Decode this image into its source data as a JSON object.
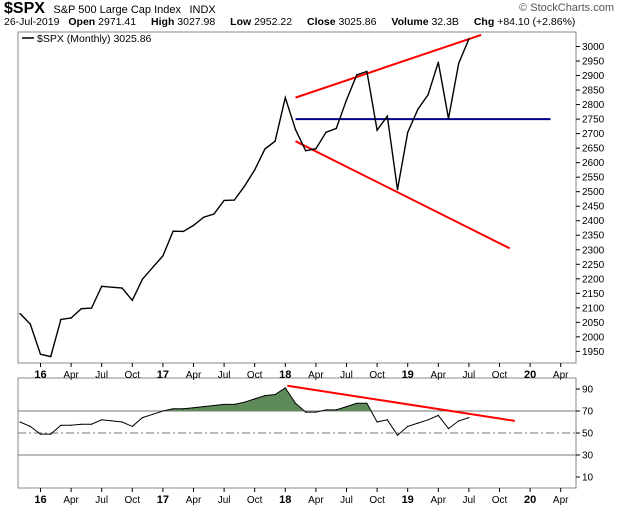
{
  "header": {
    "symbol": "$SPX",
    "name": "S&P 500 Large Cap Index",
    "exchange": "INDX",
    "date": "26-Jul-2019",
    "open_label": "Open",
    "open": "2971.41",
    "high_label": "High",
    "high": "3027.98",
    "low_label": "Low",
    "low": "2952.22",
    "close_label": "Close",
    "close": "3025.86",
    "volume_label": "Volume",
    "volume": "32.3B",
    "chg_label": "Chg",
    "chg": "+84.10 (+2.86%)",
    "attribution": "© StockCharts.com"
  },
  "chart_data": [
    {
      "type": "line",
      "legend": [
        "$SPX (Monthly) 3025.86"
      ],
      "legend_placement": "top-left",
      "grid": false,
      "ylim": [
        1910,
        3050
      ],
      "yticks": [
        1950,
        2000,
        2050,
        2100,
        2150,
        2200,
        2250,
        2300,
        2350,
        2400,
        2450,
        2500,
        2550,
        2600,
        2650,
        2700,
        2750,
        2800,
        2850,
        2900,
        2950,
        3000
      ],
      "xticks": [
        {
          "label": "16",
          "major": true,
          "m": 0
        },
        {
          "label": "Apr",
          "m": 3
        },
        {
          "label": "Jul",
          "m": 6
        },
        {
          "label": "Oct",
          "m": 9
        },
        {
          "label": "17",
          "major": true,
          "m": 12
        },
        {
          "label": "Apr",
          "m": 15
        },
        {
          "label": "Jul",
          "m": 18
        },
        {
          "label": "Oct",
          "m": 21
        },
        {
          "label": "18",
          "major": true,
          "m": 24
        },
        {
          "label": "Apr",
          "m": 27
        },
        {
          "label": "Jul",
          "m": 30
        },
        {
          "label": "Oct",
          "m": 33
        },
        {
          "label": "19",
          "major": true,
          "m": 36
        },
        {
          "label": "Apr",
          "m": 39
        },
        {
          "label": "Jul",
          "m": 42
        },
        {
          "label": "Oct",
          "m": 45
        },
        {
          "label": "20",
          "major": true,
          "m": 48
        },
        {
          "label": "Apr",
          "m": 51
        }
      ],
      "series": [
        {
          "name": "$SPX (Monthly) 3025.86",
          "color": "#000000",
          "x": [
            -2,
            -1,
            0,
            1,
            2,
            3,
            4,
            5,
            6,
            7,
            8,
            9,
            10,
            11,
            12,
            13,
            14,
            15,
            16,
            17,
            18,
            19,
            20,
            21,
            22,
            23,
            24,
            25,
            26,
            27,
            28,
            29,
            30,
            31,
            32,
            33,
            34,
            35,
            36,
            37,
            38,
            39,
            40,
            41,
            42
          ],
          "values": [
            2080,
            2044,
            1940,
            1932,
            2060,
            2065,
            2097,
            2099,
            2174,
            2171,
            2168,
            2126,
            2199,
            2239,
            2279,
            2364,
            2363,
            2384,
            2412,
            2423,
            2470,
            2471,
            2519,
            2575,
            2647,
            2674,
            2824,
            2714,
            2641,
            2648,
            2705,
            2718,
            2816,
            2902,
            2914,
            2712,
            2760,
            2507,
            2704,
            2784,
            2834,
            2946,
            2752,
            2942,
            3026
          ]
        }
      ],
      "annotations": [
        {
          "type": "trendline",
          "color": "#ff0000",
          "x": [
            25,
            43.2
          ],
          "y": [
            2824,
            3040
          ]
        },
        {
          "type": "trendline",
          "color": "#ff0000",
          "x": [
            25,
            46
          ],
          "y": [
            2674,
            2305
          ]
        },
        {
          "type": "horizontal",
          "color": "#00008b",
          "x": [
            25,
            50
          ],
          "y": [
            2750,
            2750
          ]
        }
      ]
    },
    {
      "type": "area",
      "grid": false,
      "ylim": [
        0,
        100
      ],
      "yticks": [
        10,
        30,
        50,
        70,
        90
      ],
      "reference_lines": [
        30,
        50,
        70
      ],
      "xticks_same_as_price": true,
      "series": [
        {
          "name": "",
          "color": "#000000",
          "fill_above": 70,
          "fill_color": "#5f8a5a",
          "x": [
            -2,
            -1,
            0,
            1,
            2,
            3,
            4,
            5,
            6,
            7,
            8,
            9,
            10,
            11,
            12,
            13,
            14,
            15,
            16,
            17,
            18,
            19,
            20,
            21,
            22,
            23,
            24,
            25,
            26,
            27,
            28,
            29,
            30,
            31,
            32,
            33,
            34,
            35,
            36,
            37,
            38,
            39,
            40,
            41,
            42
          ],
          "values": [
            60,
            56,
            49,
            49,
            57,
            57,
            58,
            58,
            62,
            61,
            60,
            56,
            64,
            67,
            70,
            72,
            72,
            73,
            74,
            75,
            76,
            76,
            78,
            81,
            84,
            85,
            91,
            77,
            69,
            69,
            71,
            71,
            74,
            77,
            77,
            60,
            62,
            48,
            56,
            59,
            62,
            66,
            54,
            61,
            64
          ]
        }
      ],
      "annotations": [
        {
          "type": "trendline",
          "color": "#ff0000",
          "x": [
            24.2,
            46.5
          ],
          "y": [
            93,
            61
          ]
        }
      ]
    }
  ]
}
